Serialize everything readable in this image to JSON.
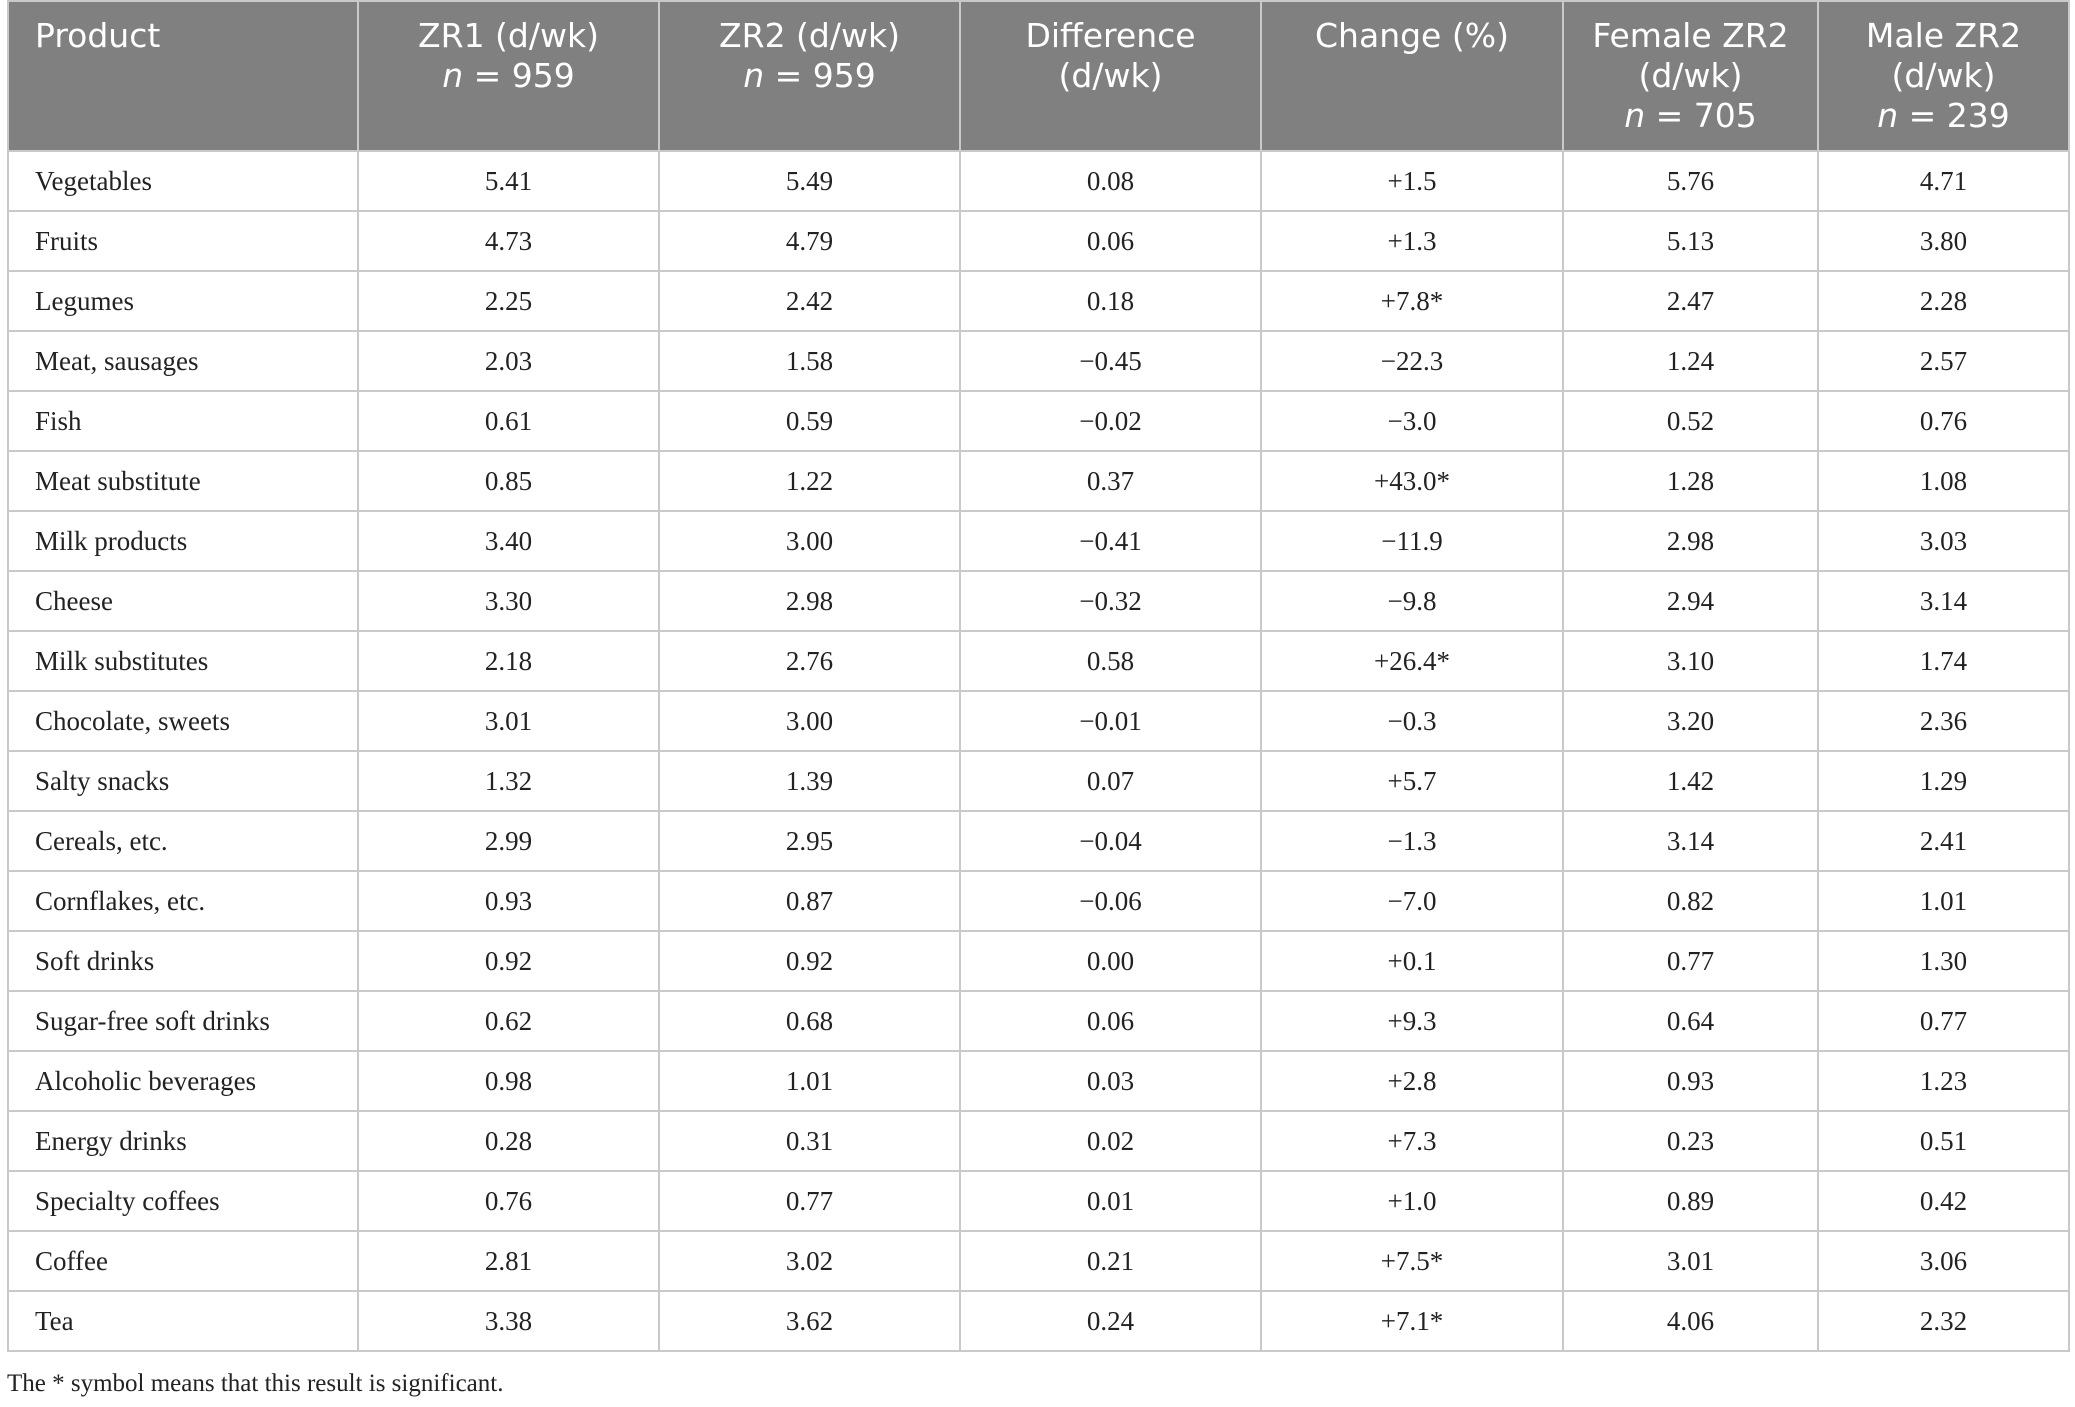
{
  "table": {
    "header": [
      {
        "lines": [
          "Product"
        ]
      },
      {
        "lines": [
          "ZR1 (d/wk)"
        ],
        "n_symbol": "n",
        "n_value": "= 959"
      },
      {
        "lines": [
          "ZR2 (d/wk)"
        ],
        "n_symbol": "n",
        "n_value": "= 959"
      },
      {
        "lines": [
          "Difference",
          "(d/wk)"
        ]
      },
      {
        "lines": [
          "Change (%)"
        ]
      },
      {
        "lines": [
          "Female ZR2",
          "(d/wk)"
        ],
        "n_symbol": "n",
        "n_value": "= 705"
      },
      {
        "lines": [
          "Male ZR2",
          "(d/wk)"
        ],
        "n_symbol": "n",
        "n_value": "= 239"
      }
    ],
    "rows": [
      [
        "Vegetables",
        "5.41",
        "5.49",
        "0.08",
        "+1.5",
        "5.76",
        "4.71"
      ],
      [
        "Fruits",
        "4.73",
        "4.79",
        "0.06",
        "+1.3",
        "5.13",
        "3.80"
      ],
      [
        "Legumes",
        "2.25",
        "2.42",
        "0.18",
        "+7.8*",
        "2.47",
        "2.28"
      ],
      [
        "Meat, sausages",
        "2.03",
        "1.58",
        "−0.45",
        "−22.3",
        "1.24",
        "2.57"
      ],
      [
        "Fish",
        "0.61",
        "0.59",
        "−0.02",
        "−3.0",
        "0.52",
        "0.76"
      ],
      [
        "Meat substitute",
        "0.85",
        "1.22",
        "0.37",
        "+43.0*",
        "1.28",
        "1.08"
      ],
      [
        "Milk products",
        "3.40",
        "3.00",
        "−0.41",
        "−11.9",
        "2.98",
        "3.03"
      ],
      [
        "Cheese",
        "3.30",
        "2.98",
        "−0.32",
        "−9.8",
        "2.94",
        "3.14"
      ],
      [
        "Milk substitutes",
        "2.18",
        "2.76",
        "0.58",
        "+26.4*",
        "3.10",
        "1.74"
      ],
      [
        "Chocolate, sweets",
        "3.01",
        "3.00",
        "−0.01",
        "−0.3",
        "3.20",
        "2.36"
      ],
      [
        "Salty snacks",
        "1.32",
        "1.39",
        "0.07",
        "+5.7",
        "1.42",
        "1.29"
      ],
      [
        "Cereals, etc.",
        "2.99",
        "2.95",
        "−0.04",
        "−1.3",
        "3.14",
        "2.41"
      ],
      [
        "Cornflakes, etc.",
        "0.93",
        "0.87",
        "−0.06",
        "−7.0",
        "0.82",
        "1.01"
      ],
      [
        "Soft drinks",
        "0.92",
        "0.92",
        "0.00",
        "+0.1",
        "0.77",
        "1.30"
      ],
      [
        "Sugar-free soft drinks",
        "0.62",
        "0.68",
        "0.06",
        "+9.3",
        "0.64",
        "0.77"
      ],
      [
        "Alcoholic beverages",
        "0.98",
        "1.01",
        "0.03",
        "+2.8",
        "0.93",
        "1.23"
      ],
      [
        "Energy drinks",
        "0.28",
        "0.31",
        "0.02",
        "+7.3",
        "0.23",
        "0.51"
      ],
      [
        "Specialty coffees",
        "0.76",
        "0.77",
        "0.01",
        "+1.0",
        "0.89",
        "0.42"
      ],
      [
        "Coffee",
        "2.81",
        "3.02",
        "0.21",
        "+7.5*",
        "3.01",
        "3.06"
      ],
      [
        "Tea",
        "3.38",
        "3.62",
        "0.24",
        "+7.1*",
        "4.06",
        "2.32"
      ]
    ],
    "footnote": "The * symbol means that this result is significant."
  }
}
